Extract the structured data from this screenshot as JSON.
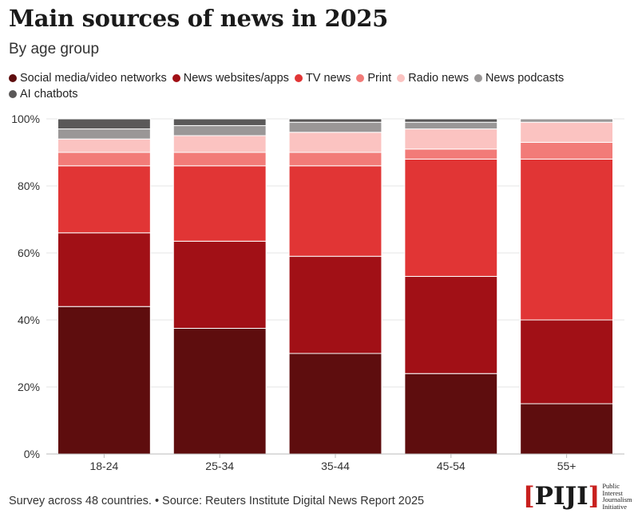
{
  "title": "Main sources of news in 2025",
  "subtitle": "By age group",
  "footer": "Survey across 48 countries. • Source: Reuters Institute Digital News Report 2025",
  "logo": {
    "mark": "PIJI",
    "lines": [
      "Public",
      "Interest",
      "Journalism",
      "Initiative"
    ]
  },
  "colors": {
    "grid": "#e6e6e6",
    "axis": "#bbbbbb",
    "tick_text": "#333333",
    "bar_edge": "#ffffff"
  },
  "chart_data": {
    "type": "bar",
    "stacked": true,
    "title": "Main sources of news in 2025",
    "subtitle": "By age group",
    "categories": [
      "18-24",
      "25-34",
      "35-44",
      "45-54",
      "55+"
    ],
    "ylim": [
      0,
      100
    ],
    "yticks": [
      0,
      20,
      40,
      60,
      80,
      100
    ],
    "ytick_labels": [
      "0%",
      "20%",
      "40%",
      "60%",
      "80%",
      "100%"
    ],
    "grid": true,
    "legend_position": "top",
    "series": [
      {
        "name": "Social media/video networks",
        "color": "#5e0d0e",
        "values": [
          44,
          37.5,
          30,
          24,
          15
        ]
      },
      {
        "name": "News websites/apps",
        "color": "#a11016",
        "values": [
          22,
          26,
          29,
          29,
          25
        ]
      },
      {
        "name": "TV news",
        "color": "#e13535",
        "values": [
          20,
          22.5,
          27,
          35,
          48
        ]
      },
      {
        "name": "Print",
        "color": "#f27b78",
        "values": [
          4,
          4,
          4,
          3,
          5
        ]
      },
      {
        "name": "Radio news",
        "color": "#fbc3c1",
        "values": [
          4,
          5,
          6,
          6,
          6
        ]
      },
      {
        "name": "News podcasts",
        "color": "#9a9797",
        "values": [
          3,
          3,
          3,
          2,
          1
        ]
      },
      {
        "name": "AI chatbots",
        "color": "#5a5858",
        "values": [
          3,
          2,
          1,
          1,
          0
        ]
      }
    ]
  }
}
